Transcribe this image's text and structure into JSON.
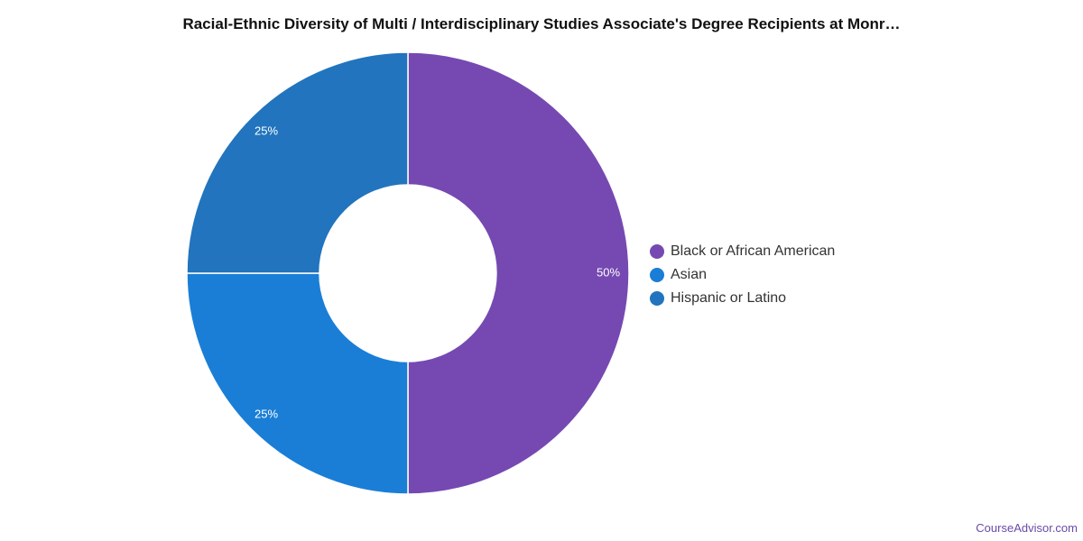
{
  "chart_data": {
    "type": "pie",
    "donut": true,
    "title": "Racial-Ethnic Diversity of Multi / Interdisciplinary Studies Associate's Degree Recipients at Monr…",
    "categories": [
      "Black or African American",
      "Asian",
      "Hispanic or Latino"
    ],
    "values": [
      50,
      25,
      25
    ],
    "data_labels": [
      "50%",
      "25%",
      "25%"
    ],
    "colors": [
      "#7549b1",
      "#1a7ed6",
      "#2174bd"
    ],
    "legend": "right",
    "start_angle": "top",
    "direction": "clockwise"
  },
  "footer": {
    "credit": "CourseAdvisor.com"
  }
}
